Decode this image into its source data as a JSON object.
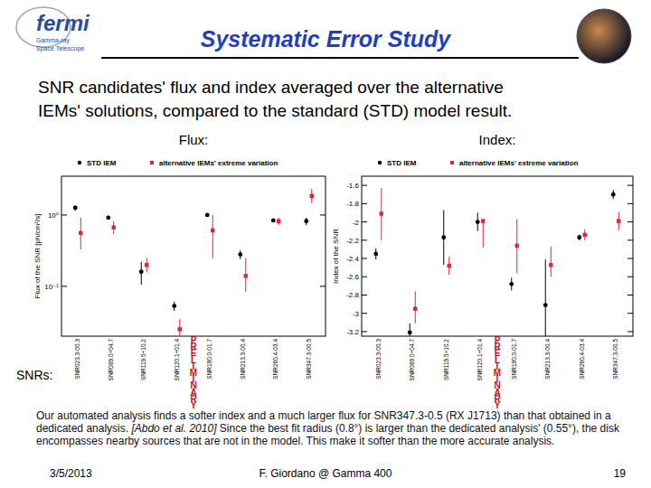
{
  "slide": {
    "logo": [
      "fermi",
      "Gamma-ray",
      "Space Telescope"
    ],
    "title": "Systematic Error Study",
    "subtitle": [
      "SNR candidates' flux and index averaged over the alternative",
      "IEMs' solutions, compared to the standard (STD) model result."
    ],
    "snrs_label": "SNRs:",
    "paragraph": {
      "before": "Our automated analysis finds a softer index and a much larger flux for SNR347.3-0.5 (RX J1713) than that obtained in a dedicated analysis. ",
      "citation": "[Abdo et al. 2010]",
      "after": " Since the best fit radius (0.8°) is larger than the dedicated analysis' (0.55°), the disk encompasses nearby sources that are not in the model. This make it softer than the more accurate analysis."
    },
    "footer": {
      "date": "3/5/2013",
      "author": "F. Giordano @ Gamma 400",
      "page": 19
    }
  },
  "chart_data": [
    {
      "type": "scatter",
      "title": "Flux:",
      "y_label": "Flux of the SNR [ph/cm²/s]",
      "annotation": "PRELIMINARY",
      "categories": [
        "SNR023.3-00.3",
        "SNR089.0+04.7",
        "SNR119.5+10.2",
        "SNR120.1+01.4",
        "SNR180.0-01.7",
        "SNR213.3-00.4",
        "SNR260.4-03.4",
        "SNR347.3-00.5"
      ],
      "log": "y",
      "ylim": [
        0.02,
        3.5
      ],
      "yticks": [
        {
          "value": 1,
          "label": "10⁰"
        },
        {
          "value": 0.1,
          "label": "10⁻¹"
        }
      ],
      "grid": false,
      "legend": "top",
      "series": [
        {
          "name": "STD IEM",
          "color": "#000000",
          "marker": "circle",
          "values": [
            1.26,
            0.92,
            0.16,
            0.053,
            1.0,
            0.28,
            0.84,
            0.82
          ],
          "error_minus": [
            0.1,
            0.06,
            0.055,
            0.008,
            0.06,
            0.04,
            0.05,
            0.1
          ],
          "error_plus": [
            0.1,
            0.06,
            0.06,
            0.008,
            0.06,
            0.04,
            0.05,
            0.1
          ]
        },
        {
          "name": "alternative IEMs' extreme variation",
          "color": "#e8202a",
          "marker": "square",
          "values": [
            0.56,
            0.67,
            0.2,
            0.025,
            0.61,
            0.14,
            0.82,
            1.85
          ],
          "error_minus": [
            0.23,
            0.13,
            0.04,
            0.008,
            0.36,
            0.056,
            0.09,
            0.39
          ],
          "error_plus": [
            0.36,
            0.15,
            0.05,
            0.01,
            0.39,
            0.11,
            0.1,
            0.48
          ]
        }
      ]
    },
    {
      "type": "scatter",
      "title": "Index:",
      "y_label": "Index of the SNR",
      "annotation": "PRELIMINARY",
      "categories": [
        "SNR023.3-00.3",
        "SNR089.0+04.7",
        "SNR119.5+10.2",
        "SNR120.1+01.4",
        "SNR180.0-01.7",
        "SNR213.3-00.4",
        "SNR260.4-03.4",
        "SNR347.3-00.5"
      ],
      "ylim": [
        -3.25,
        -1.5
      ],
      "yticks": [
        -1.6,
        -1.8,
        -2,
        -2.2,
        -2.4,
        -2.6,
        -2.8,
        -3,
        -3.2
      ],
      "grid": false,
      "legend": "top",
      "series": [
        {
          "name": "STD IEM",
          "color": "#000000",
          "marker": "circle",
          "values": [
            -2.35,
            -3.21,
            -2.17,
            -2.0,
            -2.68,
            -2.91,
            -2.17,
            -1.7
          ],
          "error_minus": [
            0.06,
            0.1,
            0.3,
            0.1,
            0.07,
            0.5,
            0.03,
            0.05
          ],
          "error_plus": [
            0.06,
            0.1,
            0.3,
            0.1,
            0.07,
            0.5,
            0.03,
            0.05
          ]
        },
        {
          "name": "alternative IEMs' extreme variation",
          "color": "#e8202a",
          "marker": "square",
          "values": [
            -1.91,
            -2.95,
            -2.48,
            -1.99,
            -2.26,
            -2.47,
            -2.14,
            -1.99
          ],
          "error_minus": [
            0.29,
            0.16,
            0.1,
            0.29,
            0.3,
            0.13,
            0.06,
            0.1
          ],
          "error_plus": [
            0.28,
            0.19,
            0.1,
            0.01,
            0.29,
            0.2,
            0.06,
            0.1
          ]
        }
      ]
    }
  ]
}
